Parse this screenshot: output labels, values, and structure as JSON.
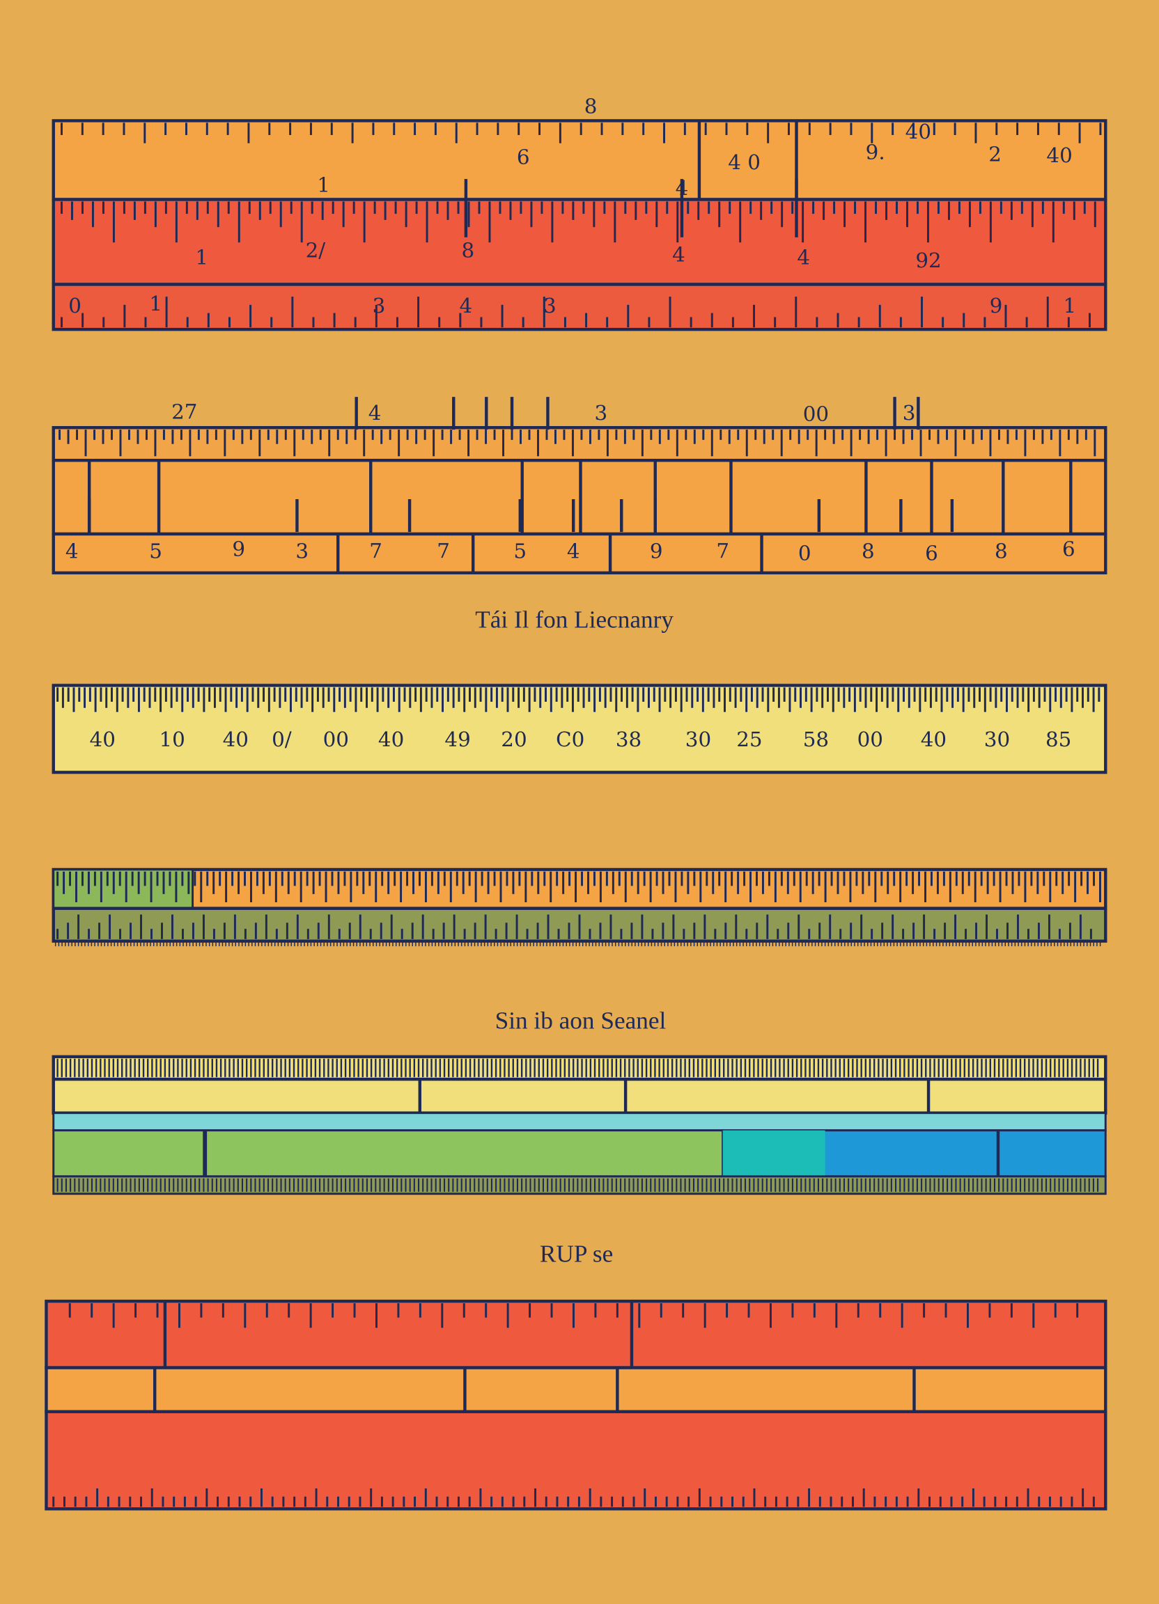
{
  "ruler_1": {
    "top_label": "8",
    "labels": [
      "6",
      "4 0",
      "9.",
      "40",
      "2",
      "40",
      "1",
      "4",
      "1",
      "2/",
      "8",
      "4",
      "4",
      "92",
      "0",
      "1",
      "3",
      "4",
      "3",
      "9",
      "1"
    ]
  },
  "ruler_2": {
    "labels": [
      "27",
      "4",
      "3",
      "00",
      "3",
      "4",
      "5",
      "9",
      "3",
      "7",
      "7",
      "5",
      "4",
      "9",
      "7",
      "0",
      "8",
      "6",
      "8",
      "6"
    ]
  },
  "caption_1": "Tái Il fon Liecnanry",
  "ruler_3": {
    "labels": [
      "40",
      "10",
      "40",
      "0/",
      "00",
      "40",
      "49",
      "20",
      "C0",
      "38",
      "30",
      "25",
      "58",
      "00",
      "40",
      "30",
      "85"
    ]
  },
  "caption_2": "Sin ib aon Seanel",
  "caption_3": "RUP se"
}
